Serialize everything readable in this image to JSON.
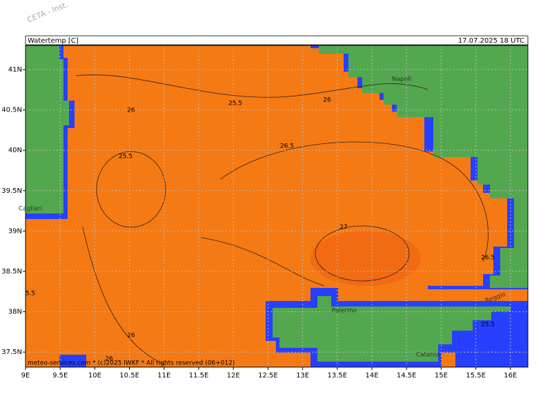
{
  "header": {
    "watermark": "CETA - Inst.",
    "title": "Watertemp [C]",
    "date": "17.07.2025 18 UTC"
  },
  "latitude_labels": [
    "41N",
    "40.5N",
    "40N",
    "39.5N",
    "39N",
    "38.5N",
    "38N",
    "37.5N"
  ],
  "longitude_labels": [
    "9E",
    "9.5E",
    "10E",
    "10.5E",
    "11E",
    "11.5E",
    "12E",
    "12.5E",
    "13E",
    "13.5E",
    "14E",
    "14.5E",
    "15E",
    "15.5E",
    "16E"
  ],
  "contour_labels": [
    "26",
    "25.5",
    "26",
    "26.5",
    "25.5",
    "27",
    "26.5",
    "5.5",
    "26",
    "26",
    "25.5"
  ],
  "places": [
    "Napoli",
    "Cagliari",
    "Palermo",
    "Reggio",
    "Catania"
  ],
  "credit": "meteo-services.com * (c)2025 IWKF * All rights reserved (06+012)"
}
